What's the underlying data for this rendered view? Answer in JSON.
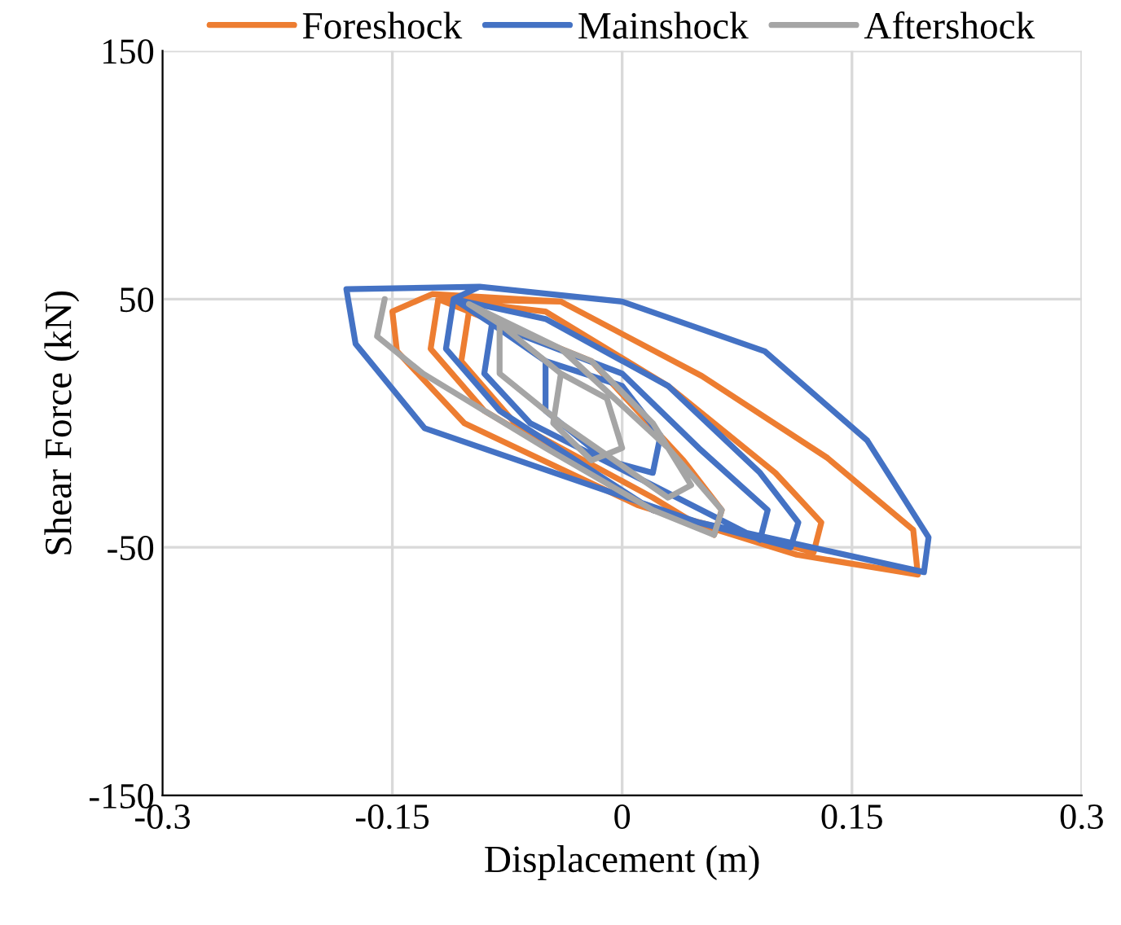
{
  "chart_data": {
    "type": "line",
    "xlabel": "Displacement (m)",
    "ylabel": "Shear Force (kN)",
    "xlim": [
      -0.3,
      0.3
    ],
    "xticks": [
      -0.3,
      -0.15,
      0,
      0.15,
      0.3
    ],
    "ylim": [
      -150,
      150
    ],
    "yticks": [
      -150,
      -50,
      50,
      150
    ],
    "grid": true,
    "legend": "top",
    "marker": "none",
    "line_style": "solid",
    "series": [
      {
        "name": "Foreshock",
        "color": "#ed7d31",
        "x": [
          -0.04,
          -0.124,
          -0.15,
          -0.147,
          -0.103,
          0.01,
          0.114,
          0.193,
          0.19,
          0.134,
          0.052,
          -0.04,
          -0.12,
          -0.125,
          -0.09,
          0.02,
          0.125,
          0.13,
          0.1,
          0.03,
          -0.05,
          -0.12,
          -0.1,
          -0.105,
          -0.07,
          0.02,
          0.06,
          0.065,
          0.04,
          -0.02,
          -0.1
        ],
        "values": [
          49,
          52,
          45,
          29,
          0,
          -33,
          -53,
          -61,
          -43,
          -14,
          19,
          49,
          50,
          30,
          5,
          -35,
          -52,
          -40,
          -20,
          15,
          45,
          50,
          45,
          25,
          0,
          -30,
          -45,
          -35,
          -15,
          25,
          45
        ]
      },
      {
        "name": "Mainshock",
        "color": "#4472c4",
        "x": [
          -0.093,
          -0.18,
          -0.174,
          -0.129,
          0.05,
          0.197,
          0.2,
          0.16,
          0.093,
          0,
          -0.093,
          -0.11,
          -0.115,
          -0.08,
          0.02,
          0.11,
          0.115,
          0.09,
          0.03,
          -0.05,
          -0.11,
          -0.085,
          -0.09,
          -0.06,
          0.02,
          0.09,
          0.095,
          0.05,
          0,
          -0.085,
          -0.05,
          -0.05,
          -0.01,
          0.02,
          0.025,
          0,
          -0.05
        ],
        "values": [
          55,
          54,
          32,
          -2,
          -40,
          -60,
          -46,
          -7,
          29,
          49,
          55,
          50,
          30,
          5,
          -35,
          -50,
          -40,
          -20,
          15,
          42,
          50,
          40,
          20,
          0,
          -25,
          -47,
          -35,
          -10,
          20,
          40,
          25,
          5,
          -15,
          -20,
          -5,
          15,
          25
        ]
      },
      {
        "name": "Aftershock",
        "color": "#a5a5a5",
        "x": [
          -0.155,
          -0.16,
          -0.13,
          -0.05,
          0.02,
          0.06,
          0.065,
          0.03,
          -0.04,
          -0.1,
          -0.08,
          -0.08,
          -0.04,
          0.03,
          0.045,
          0.02,
          -0.02,
          -0.08,
          -0.04,
          -0.045,
          -0.02,
          0,
          -0.01,
          -0.04
        ],
        "values": [
          50,
          35,
          20,
          -10,
          -35,
          -45,
          -35,
          -10,
          30,
          48,
          40,
          20,
          0,
          -30,
          -25,
          0,
          25,
          40,
          20,
          0,
          -15,
          -10,
          10,
          20
        ]
      }
    ]
  }
}
